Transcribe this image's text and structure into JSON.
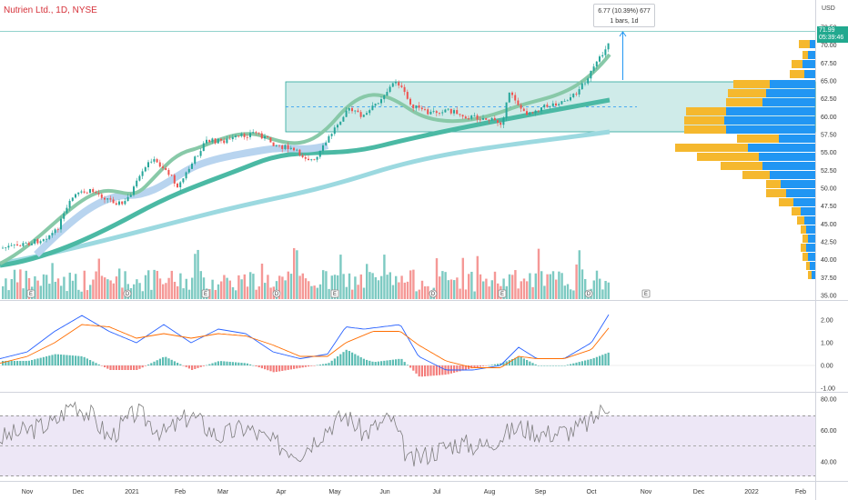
{
  "header": {
    "title": "Nutrien Ltd., 1D, NYSE",
    "currency": "USD"
  },
  "tooltip": {
    "line1": "6.77 (10.39%) 677",
    "line2": "1 bars, 1d"
  },
  "price_badge": {
    "price": "71.99",
    "countdown": "05:39:46"
  },
  "price_axis": {
    "ticks": [
      "72.50",
      "70.00",
      "67.50",
      "65.00",
      "62.50",
      "60.00",
      "57.50",
      "55.00",
      "52.50",
      "50.00",
      "47.50",
      "45.00",
      "42.50",
      "40.00",
      "37.50",
      "35.00"
    ]
  },
  "macd_axis": {
    "ticks": [
      "2.00",
      "1.00",
      "0.00",
      "-1.00"
    ]
  },
  "rsi_axis": {
    "ticks": [
      "80.00",
      "60.00",
      "40.00"
    ]
  },
  "time_axis": {
    "labels": [
      "Nov",
      "Dec",
      "2021",
      "Feb",
      "Mar",
      "Apr",
      "May",
      "Jun",
      "Jul",
      "Aug",
      "Sep",
      "Oct",
      "Nov",
      "Dec",
      "2022",
      "Feb"
    ]
  },
  "event_markers": [
    "E",
    "D",
    "E",
    "D",
    "E",
    "D",
    "E",
    "D",
    "E"
  ],
  "colors": {
    "up": "#26a69a",
    "down": "#ef5350",
    "box_fill": "#26a69a",
    "volume_profile_up": "#2196f3",
    "volume_profile_down": "#f5b82e",
    "macd_line": "#2962ff",
    "signal_line": "#ff6d00",
    "rsi_line": "#7e7e7e",
    "rsi_band": "#ede7f6"
  }
}
